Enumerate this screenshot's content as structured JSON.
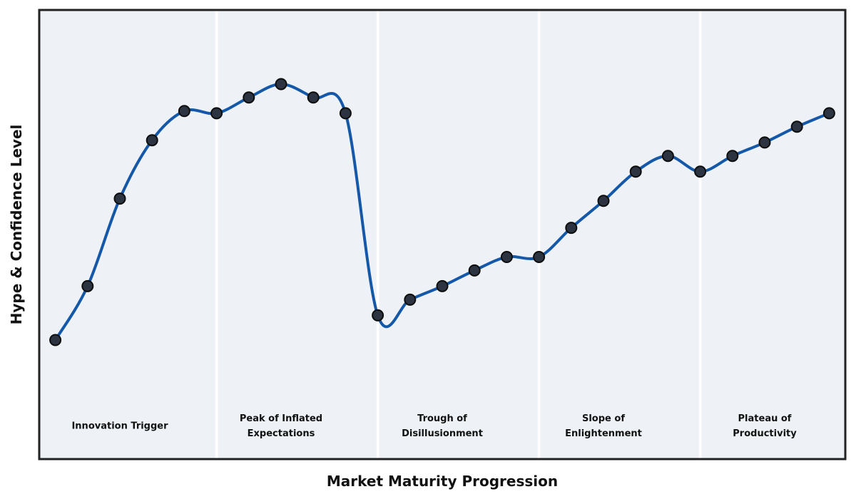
{
  "chart_data": {
    "type": "line",
    "title": "",
    "xlabel": "Market Maturity Progression",
    "ylabel": "Hype & Confidence Level",
    "x": [
      1,
      2,
      3,
      4,
      5,
      6,
      7,
      8,
      9,
      10,
      11,
      12,
      13,
      14,
      15,
      16,
      17,
      18,
      19,
      20,
      21,
      22,
      23,
      24,
      25
    ],
    "y": [
      26.5,
      38.5,
      58,
      71,
      77.5,
      77,
      80.5,
      83.5,
      80.5,
      77,
      32,
      35.5,
      38.5,
      42,
      45,
      45,
      51.5,
      57.5,
      64,
      67.5,
      64,
      67.5,
      70.5,
      74,
      77
    ],
    "xlim": [
      0.5,
      25.5
    ],
    "ylim": [
      0,
      100
    ],
    "grid": false,
    "legend_position": "none",
    "y_ticks_visible": false,
    "x_ticks_visible": false,
    "line_color": "#1558a8",
    "marker_color": "#2b3440",
    "marker_edge_color": "#0d0d0d",
    "plot_bg_color": "#eef2f7",
    "separator_color": "#ffffff",
    "border_color": "#222222",
    "phase_boundaries_x": [
      6,
      11,
      16,
      21
    ],
    "phases": [
      {
        "label": "Innovation Trigger",
        "center_x": 3
      },
      {
        "label": "Peak of Inflated\nExpectations",
        "center_x": 8
      },
      {
        "label": "Trough of\nDisillusionment",
        "center_x": 13
      },
      {
        "label": "Slope of\nEnlightenment",
        "center_x": 18
      },
      {
        "label": "Plateau of\nProductivity",
        "center_x": 23
      }
    ]
  }
}
